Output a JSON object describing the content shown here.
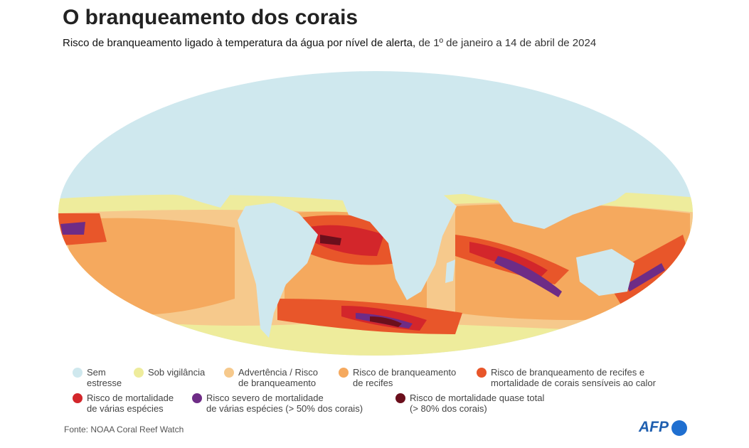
{
  "header": {
    "title": "O branqueamento dos corais",
    "subtitle_bold": "Risco de branqueamento ligado à temperatura da água por nível de alerta,",
    "subtitle_rest": "de 1º de janeiro a 14 de abril de 2024"
  },
  "legend": [
    {
      "lines": [
        "Sem",
        "estresse"
      ],
      "color": "#cfe8ee"
    },
    {
      "lines": [
        "Sob vigilância"
      ],
      "color": "#eeec9c"
    },
    {
      "lines": [
        "Advertência / Risco",
        "de branqueamento"
      ],
      "color": "#f6c98c"
    },
    {
      "lines": [
        "Risco de branqueamento",
        "de recifes"
      ],
      "color": "#f5a95e"
    },
    {
      "lines": [
        "Risco de branqueamento de recifes e",
        "mortalidade de corais sensíveis ao calor"
      ],
      "color": "#e8562a"
    },
    {
      "lines": [
        "Risco de mortalidade",
        "de várias espécies"
      ],
      "color": "#d3262b"
    },
    {
      "lines": [
        "Risco severo de mortalidade",
        "de várias espécies (> 50% dos corais)"
      ],
      "color": "#6e2c86"
    },
    {
      "lines": [
        "Risco de mortalidade quase total",
        "(> 80% dos corais)"
      ],
      "color": "#6b0f1c"
    }
  ],
  "source": "Fonte: NOAA Coral Reef Watch",
  "logo": "AFP"
}
